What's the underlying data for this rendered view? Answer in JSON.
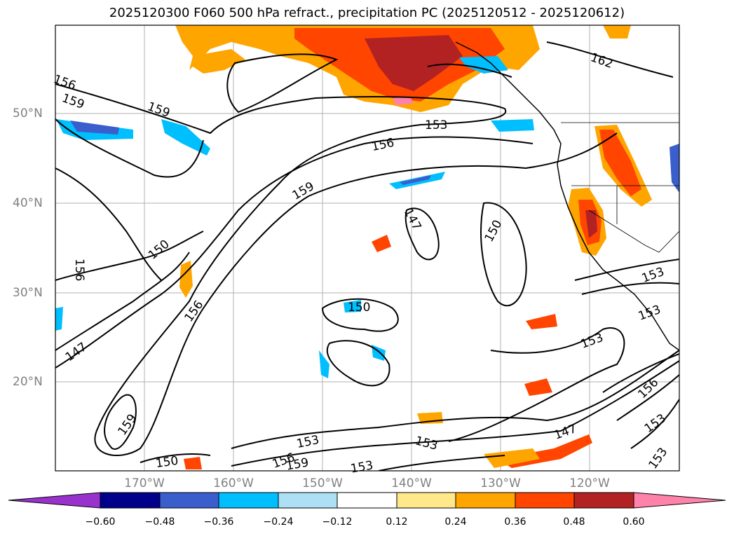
{
  "title": "2025120300 F060 500 hPa refract., precipitation PC (2025120512 - 2025120612)",
  "latitude_labels": [
    "50°N",
    "40°N",
    "30°N",
    "20°N"
  ],
  "longitude_labels": [
    "170°W",
    "160°W",
    "150°W",
    "140°W",
    "130°W",
    "120°W"
  ],
  "contour_labels": [
    "156",
    "159",
    "159",
    "162",
    "153",
    "156",
    "159",
    "147",
    "150",
    "150",
    "156",
    "156",
    "147",
    "150",
    "153",
    "153",
    "159",
    "150",
    "156",
    "159",
    "153",
    "153",
    "147",
    "156",
    "153",
    "153"
  ],
  "colorbar": {
    "ticks": [
      "−0.60",
      "−0.48",
      "−0.36",
      "−0.24",
      "−0.12",
      "0.12",
      "0.24",
      "0.36",
      "0.48",
      "0.60"
    ],
    "colors": [
      "#9932CC",
      "#00008B",
      "#3A5FCD",
      "#00BFFF",
      "#ADDFF5",
      "#FFFFFF",
      "#FFE88A",
      "#FFA500",
      "#FF4500",
      "#B22222",
      "#FF82AB"
    ]
  },
  "map_colors": {
    "frame": "#000000",
    "grid": "#b0b0b0",
    "contour": "#000000"
  }
}
